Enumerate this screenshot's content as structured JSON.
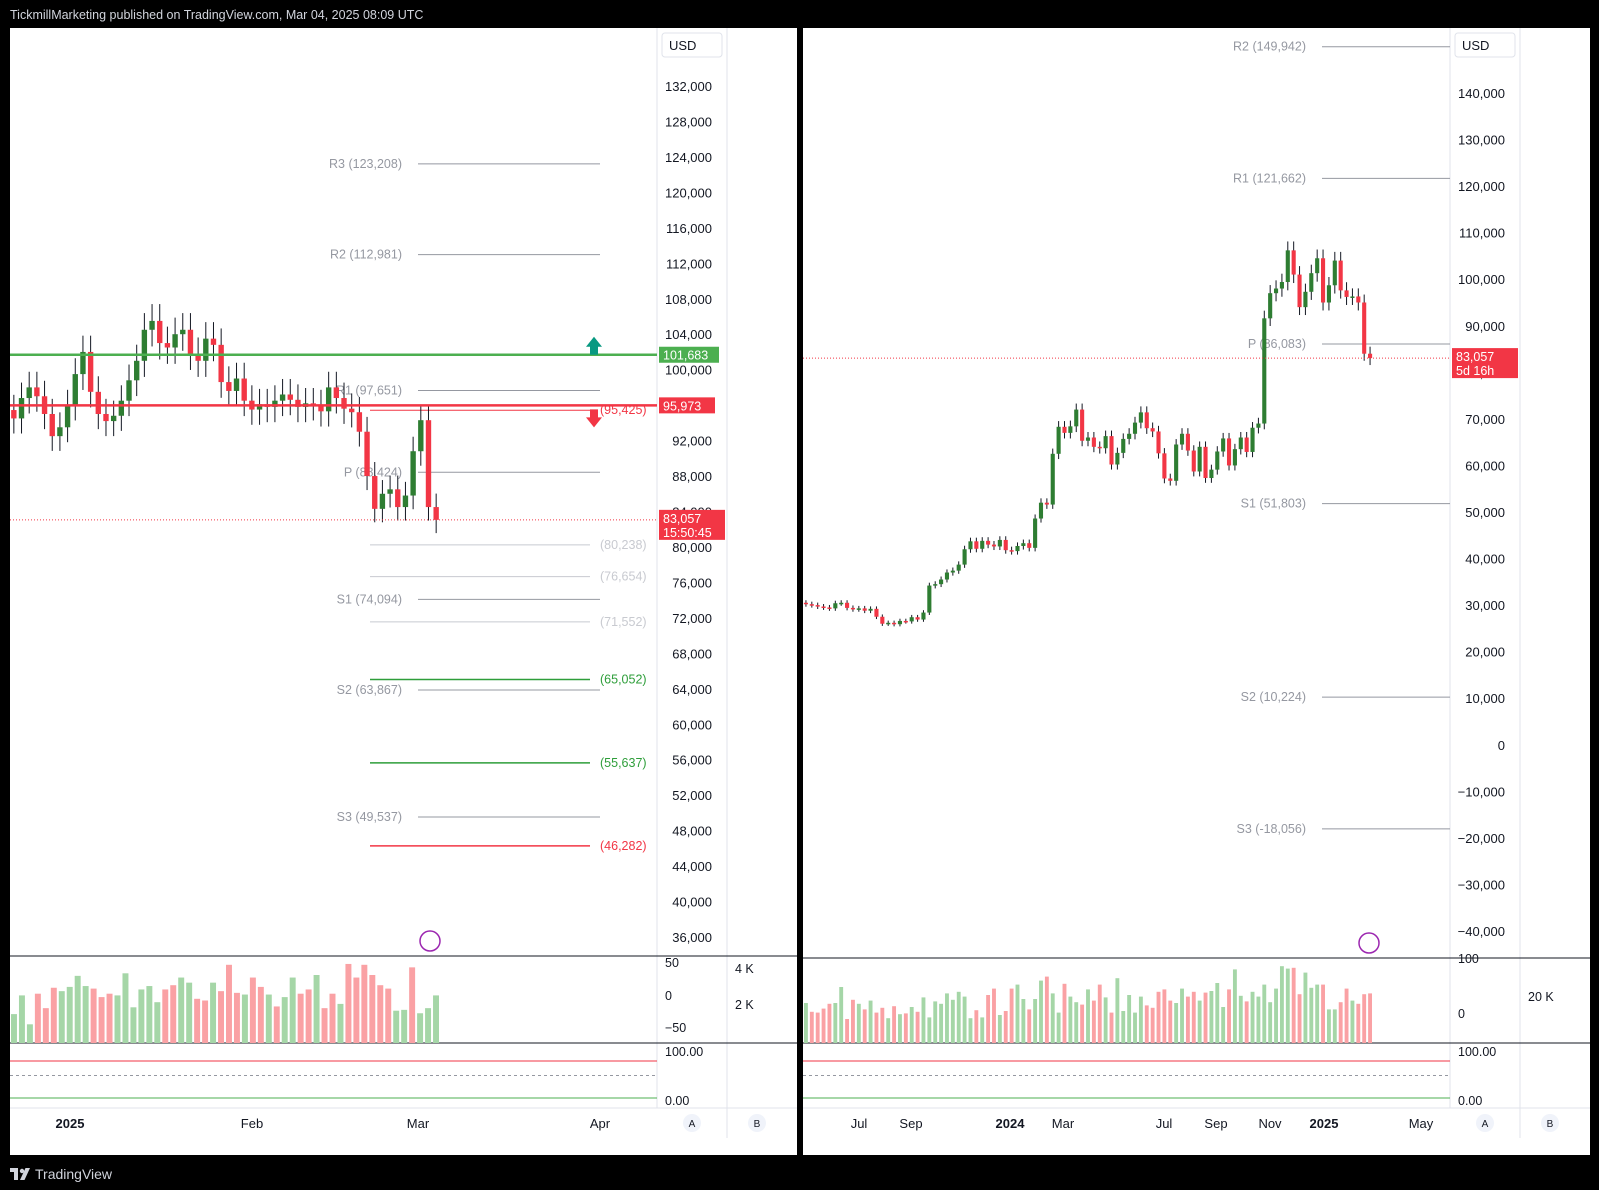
{
  "header": {
    "publisher_line": "TickmillMarketing published on TradingView.com, Mar 04, 2025 08:09 UTC"
  },
  "footer": {
    "brand": "TradingView"
  },
  "colors": {
    "up": "#089981",
    "down": "#f23645",
    "accent_green": "#4caf50",
    "accent_red": "#f23645",
    "pivot_line": "#b2b5be",
    "grid_text": "#131722"
  },
  "left_panel": {
    "currency": "USD",
    "price_axis": [
      "132,000",
      "128,000",
      "124,000",
      "120,000",
      "116,000",
      "112,000",
      "108,000",
      "104,000",
      "100,000",
      "96,000",
      "92,000",
      "88,000",
      "84,000",
      "80,000",
      "76,000",
      "72,000",
      "68,000",
      "64,000",
      "60,000",
      "56,000",
      "52,000",
      "48,000",
      "44,000",
      "40,000",
      "36,000"
    ],
    "time_axis": [
      "2025",
      "Feb",
      "Mar",
      "Apr"
    ],
    "time_axis_bold": [
      "2025"
    ],
    "price_tags": {
      "green_level": "101,683",
      "red_level": "95,973",
      "last_price": "83,057",
      "countdown": "15:50:45"
    },
    "pivots": [
      {
        "label": "R3 (123,208)"
      },
      {
        "label": "R2 (112,981)"
      },
      {
        "label": "R1 (97,651)"
      },
      {
        "label": "P (88,424)"
      },
      {
        "label": "S1 (74,094)"
      },
      {
        "label": "S2 (63,867)"
      },
      {
        "label": "S3 (49,537)"
      }
    ],
    "fib_levels": [
      {
        "label": "(95,425)"
      },
      {
        "label": "(80,238)"
      },
      {
        "label": "(76,654)"
      },
      {
        "label": "(71,552)"
      },
      {
        "label": "(65,052)"
      },
      {
        "label": "(55,637)"
      },
      {
        "label": "(46,282)"
      }
    ],
    "osc1_axis": [
      "50",
      "0",
      "−50"
    ],
    "vol_axis": [
      "4 K",
      "2 K"
    ],
    "osc2_axis": [
      "100.00",
      "0.00"
    ],
    "scale_buttons": [
      "A",
      "B"
    ]
  },
  "right_panel": {
    "currency": "USD",
    "price_axis": [
      "140,000",
      "130,000",
      "120,000",
      "110,000",
      "100,000",
      "90,000",
      "80,000",
      "70,000",
      "60,000",
      "50,000",
      "40,000",
      "30,000",
      "20,000",
      "10,000",
      "0",
      "−10,000",
      "−20,000",
      "−30,000",
      "−40,000"
    ],
    "time_axis": [
      "Jul",
      "Sep",
      "2024",
      "Mar",
      "Jul",
      "Sep",
      "Nov",
      "2025",
      "May"
    ],
    "time_axis_bold": [
      "2024",
      "2025"
    ],
    "price_tags": {
      "last_price": "83,057",
      "countdown": "5d 16h"
    },
    "pivots": [
      {
        "label": "R2 (149,942)"
      },
      {
        "label": "R1 (121,662)"
      },
      {
        "label": "P (86,083)"
      },
      {
        "label": "S1 (51,803)"
      },
      {
        "label": "S2 (10,224)"
      },
      {
        "label": "S3 (-18,056)"
      }
    ],
    "osc1_axis": [
      "100",
      "0"
    ],
    "vol_axis": [
      "20 K"
    ],
    "osc2_axis": [
      "100.00",
      "0.00"
    ],
    "scale_buttons": [
      "A",
      "B"
    ]
  },
  "chart_data": [
    {
      "type": "candlestick",
      "title": "",
      "timeframe_shown": "daily",
      "ylim": [
        34000,
        136000
      ],
      "x_ticks": [
        "2025",
        "Feb",
        "Mar",
        "Apr"
      ],
      "last_price": 83057,
      "horizontal_levels": {
        "green_resistance": 101683,
        "red_level": 95973
      },
      "pivots": {
        "R3": 123208,
        "R2": 112981,
        "R1": 97651,
        "P": 88424,
        "S1": 74094,
        "S2": 63867,
        "S3": 49537
      },
      "fib_levels": [
        95425,
        80238,
        76654,
        71552,
        65052,
        55637,
        46282
      ],
      "close_path": [
        94500,
        96800,
        98000,
        97000,
        95000,
        92500,
        93500,
        96000,
        99500,
        102000,
        97500,
        95000,
        94200,
        94800,
        96500,
        98800,
        101000,
        104500,
        105500,
        103000,
        102500,
        104000,
        104500,
        101800,
        101000,
        103500,
        102800,
        98600,
        97600,
        99000,
        96500,
        95500,
        96100,
        95800,
        96500,
        97200,
        96600,
        95800,
        96200,
        96000,
        95300,
        98000,
        96800,
        95600,
        95200,
        93000,
        88000,
        84300,
        86000,
        86500,
        84500,
        85800,
        90800,
        94300,
        84500,
        83057
      ]
    },
    {
      "type": "candlestick",
      "title": "",
      "timeframe_shown": "weekly",
      "ylim": [
        -45000,
        148000
      ],
      "x_ticks": [
        "Jul",
        "Sep",
        "2024",
        "Mar",
        "Jul",
        "Sep",
        "Nov",
        "2025",
        "May"
      ],
      "last_price": 83057,
      "pivots": {
        "R2": 149942,
        "R1": 121662,
        "P": 86083,
        "S1": 51803,
        "S2": 10224,
        "S3": -18056
      },
      "close_path": [
        30200,
        30000,
        29700,
        29500,
        29300,
        30400,
        30500,
        29400,
        29100,
        29300,
        28800,
        29200,
        27500,
        26000,
        26200,
        25900,
        26600,
        26500,
        27400,
        26900,
        28400,
        34200,
        34500,
        35500,
        37000,
        37400,
        38700,
        42000,
        43700,
        42100,
        43800,
        43000,
        42600,
        44000,
        41800,
        41600,
        42700,
        43300,
        42300,
        48600,
        52000,
        51600,
        62500,
        68300,
        67000,
        68400,
        72000,
        65300,
        66000,
        64000,
        63700,
        66300,
        60200,
        62700,
        65700,
        66800,
        69200,
        71400,
        68000,
        67300,
        62600,
        57200,
        56700,
        64500,
        66800,
        63200,
        58700,
        64000,
        57300,
        59100,
        63000,
        65800,
        60000,
        63500,
        66000,
        62900,
        68100,
        69000,
        91600,
        97000,
        98000,
        99400,
        106200,
        101000,
        94000,
        97300,
        101300,
        104500,
        95000,
        98700,
        104000,
        97600,
        96200,
        96300,
        95000,
        84000,
        83057
      ]
    },
    {
      "type": "bar",
      "title": "",
      "series": [
        {
          "name": "",
          "values": [
            34,
            56,
            22,
            58,
            41,
            65,
            61,
            66,
            79,
            67,
            64,
            54,
            58,
            56,
            82,
            42,
            63,
            67,
            48,
            63,
            68,
            77,
            71,
            52,
            50,
            71,
            61,
            92,
            59,
            57,
            77,
            66,
            57,
            43,
            54,
            77,
            58,
            63,
            80,
            41,
            58,
            46,
            93,
            77,
            92,
            80,
            68,
            64,
            38,
            39,
            89,
            35,
            41,
            56
          ]
        }
      ]
    },
    {
      "type": "bar",
      "title": "",
      "series": [
        {
          "name": "",
          "values": [
            50,
            39,
            38,
            43,
            49,
            50,
            70,
            30,
            54,
            49,
            42,
            53,
            38,
            44,
            31,
            46,
            36,
            37,
            45,
            39,
            57,
            32,
            52,
            49,
            62,
            54,
            64,
            58,
            31,
            41,
            32,
            60,
            68,
            35,
            40,
            68,
            73,
            55,
            42,
            55,
            78,
            83,
            62,
            38,
            74,
            58,
            51,
            48,
            67,
            53,
            73,
            57,
            38,
            81,
            40,
            60,
            38,
            58,
            47,
            44,
            64,
            67,
            53,
            50,
            68,
            58,
            64,
            53,
            63,
            65,
            75,
            45,
            67,
            92,
            59,
            52,
            64,
            58,
            73,
            51,
            68,
            96,
            93,
            94,
            61,
            88,
            69,
            73,
            73,
            42,
            42,
            51,
            68,
            53,
            49,
            61,
            62
          ]
        }
      ]
    }
  ]
}
